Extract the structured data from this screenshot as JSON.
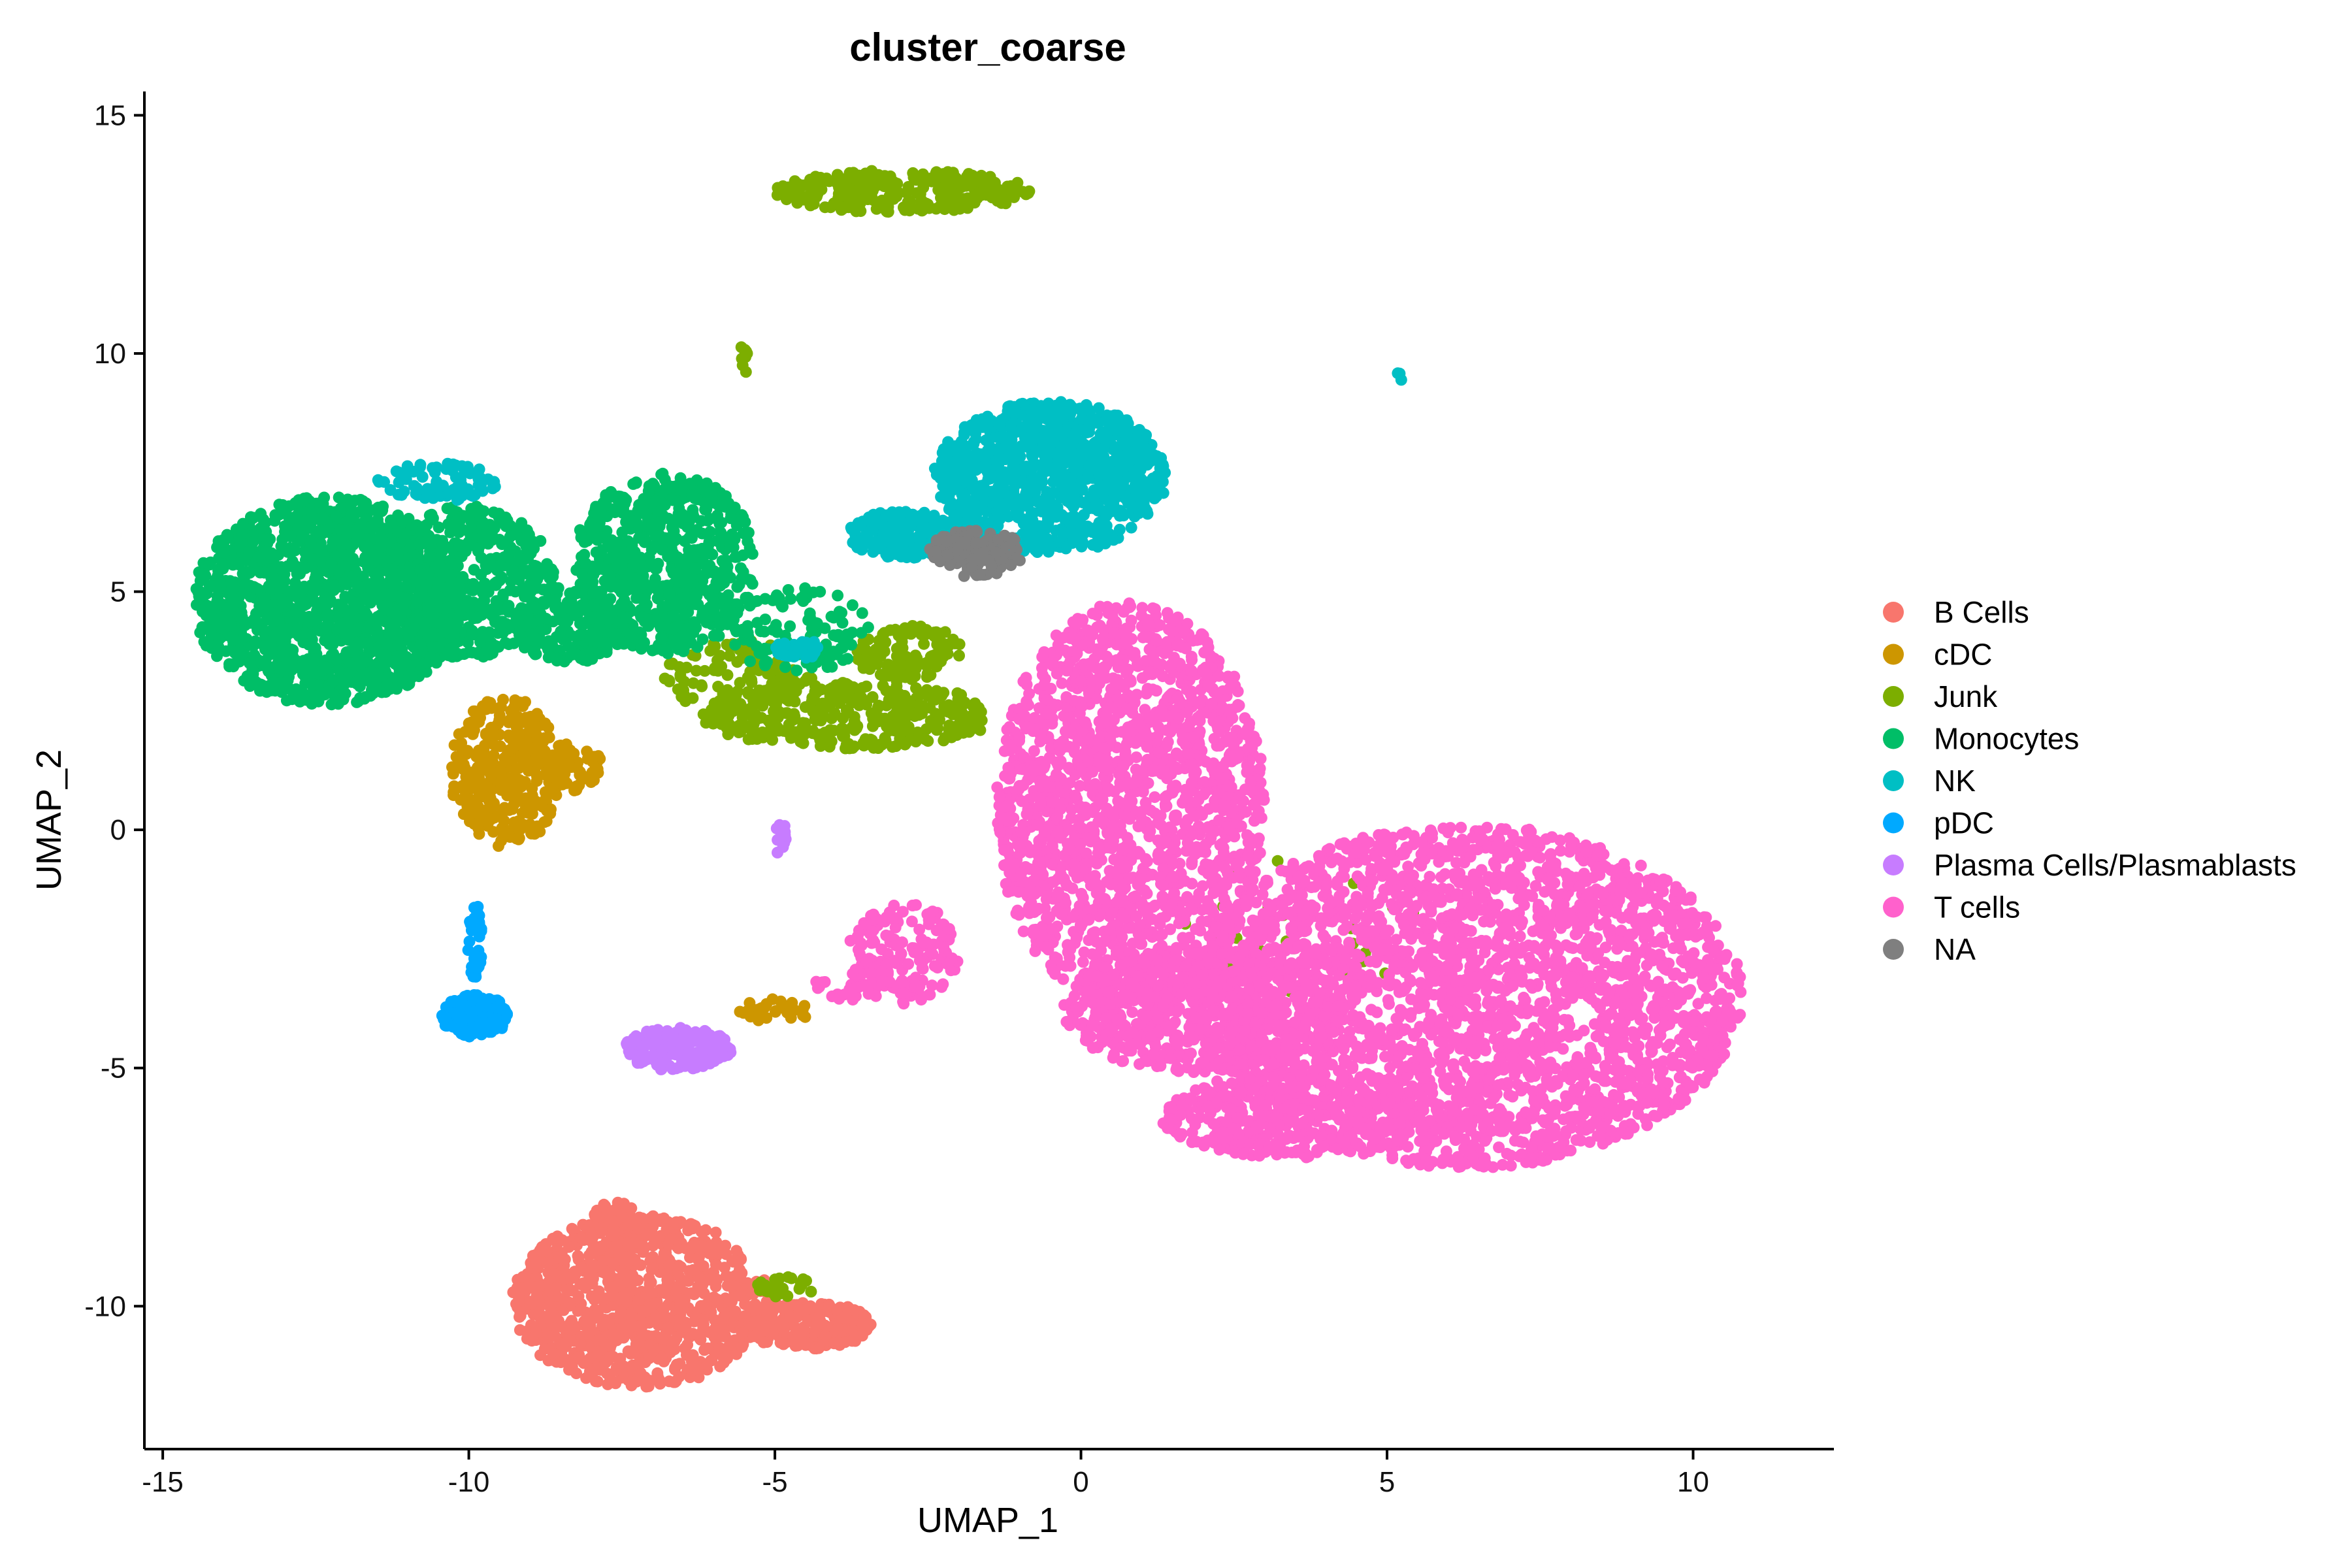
{
  "chart_data": {
    "type": "scatter",
    "title": "cluster_coarse",
    "xlabel": "UMAP_1",
    "ylabel": "UMAP_2",
    "xlim": [
      -15.3,
      12.3
    ],
    "ylim": [
      -13.0,
      15.5
    ],
    "x_ticks": [
      -15,
      -10,
      -5,
      0,
      5,
      10
    ],
    "y_ticks": [
      -10,
      -5,
      0,
      5,
      10,
      15
    ],
    "grid": false,
    "legend_position": "right",
    "series": [
      {
        "name": "B Cells",
        "color": "#F8766D",
        "blobs": [
          {
            "cx": -7.2,
            "cy": -9.9,
            "rx": 2.1,
            "ry": 1.8,
            "n": 900
          },
          {
            "cx": -4.5,
            "cy": -10.4,
            "rx": 1.1,
            "ry": 0.5,
            "n": 220
          },
          {
            "cx": -7.6,
            "cy": -8.5,
            "rx": 0.5,
            "ry": 0.7,
            "n": 90
          }
        ]
      },
      {
        "name": "cDC",
        "color": "#CD9600",
        "blobs": [
          {
            "cx": -9.4,
            "cy": 1.2,
            "rx": 0.9,
            "ry": 1.6,
            "n": 340
          },
          {
            "cx": -8.4,
            "cy": 1.3,
            "rx": 0.6,
            "ry": 0.5,
            "n": 80
          },
          {
            "cx": -5.0,
            "cy": -3.8,
            "rx": 0.6,
            "ry": 0.25,
            "n": 30
          }
        ]
      },
      {
        "name": "Junk",
        "color": "#7CAE00",
        "blobs": [
          {
            "cx": -2.9,
            "cy": 13.4,
            "rx": 2.1,
            "ry": 0.45,
            "n": 260
          },
          {
            "cx": -3.8,
            "cy": 2.4,
            "rx": 2.4,
            "ry": 0.7,
            "n": 380
          },
          {
            "cx": -2.8,
            "cy": 3.7,
            "rx": 0.9,
            "ry": 0.6,
            "n": 120
          },
          {
            "cx": -5.6,
            "cy": 3.2,
            "rx": 1.2,
            "ry": 0.8,
            "n": 120
          },
          {
            "cx": -5.5,
            "cy": 9.9,
            "rx": 0.08,
            "ry": 0.35,
            "n": 10
          },
          {
            "cx": -4.8,
            "cy": -9.6,
            "rx": 0.5,
            "ry": 0.25,
            "n": 25
          },
          {
            "cx": 3.5,
            "cy": -2.0,
            "rx": 2.0,
            "ry": 1.5,
            "n": 30
          }
        ]
      },
      {
        "name": "Monocytes",
        "color": "#00BE67",
        "blobs": [
          {
            "cx": -12.3,
            "cy": 4.8,
            "rx": 2.2,
            "ry": 2.2,
            "n": 1500
          },
          {
            "cx": -10.0,
            "cy": 5.2,
            "rx": 1.4,
            "ry": 1.6,
            "n": 500
          },
          {
            "cx": -6.8,
            "cy": 5.6,
            "rx": 1.5,
            "ry": 1.9,
            "n": 650
          },
          {
            "cx": -8.3,
            "cy": 4.3,
            "rx": 1.0,
            "ry": 0.8,
            "n": 200
          },
          {
            "cx": -4.6,
            "cy": 4.2,
            "rx": 1.2,
            "ry": 0.9,
            "n": 100
          }
        ]
      },
      {
        "name": "NK",
        "color": "#00BFC4",
        "blobs": [
          {
            "cx": -0.5,
            "cy": 7.4,
            "rx": 1.9,
            "ry": 1.6,
            "n": 950
          },
          {
            "cx": -2.9,
            "cy": 6.2,
            "rx": 0.9,
            "ry": 0.5,
            "n": 220
          },
          {
            "cx": -10.5,
            "cy": 7.3,
            "rx": 1.0,
            "ry": 0.4,
            "n": 80
          },
          {
            "cx": -4.6,
            "cy": 3.8,
            "rx": 0.4,
            "ry": 0.2,
            "n": 40
          },
          {
            "cx": 5.2,
            "cy": 9.5,
            "rx": 0.05,
            "ry": 0.1,
            "n": 3
          }
        ]
      },
      {
        "name": "pDC",
        "color": "#00A9FF",
        "blobs": [
          {
            "cx": -9.9,
            "cy": -3.9,
            "rx": 0.55,
            "ry": 0.45,
            "n": 170
          },
          {
            "cx": -9.9,
            "cy": -2.3,
            "rx": 0.12,
            "ry": 0.8,
            "n": 40
          }
        ]
      },
      {
        "name": "Plasma Cells/Plasmablasts",
        "color": "#C77CFF",
        "blobs": [
          {
            "cx": -6.6,
            "cy": -4.6,
            "rx": 0.9,
            "ry": 0.45,
            "n": 190
          },
          {
            "cx": -4.9,
            "cy": -0.2,
            "rx": 0.1,
            "ry": 0.35,
            "n": 12
          }
        ]
      },
      {
        "name": "T cells",
        "color": "#FF61CC",
        "blobs": [
          {
            "cx": 0.8,
            "cy": 0.5,
            "rx": 2.2,
            "ry": 4.3,
            "n": 1800
          },
          {
            "cx": 6.3,
            "cy": -3.5,
            "rx": 4.5,
            "ry": 3.6,
            "n": 2800
          },
          {
            "cx": 2.0,
            "cy": -3.8,
            "rx": 2.3,
            "ry": 1.3,
            "n": 600
          },
          {
            "cx": 3.5,
            "cy": -6.0,
            "rx": 2.2,
            "ry": 0.9,
            "n": 400
          },
          {
            "cx": -2.9,
            "cy": -2.6,
            "rx": 0.9,
            "ry": 1.1,
            "n": 140
          },
          {
            "cx": -3.5,
            "cy": -3.3,
            "rx": 0.9,
            "ry": 0.3,
            "n": 40
          }
        ]
      },
      {
        "name": "NA",
        "color": "#7F7F7F",
        "blobs": [
          {
            "cx": -1.7,
            "cy": 5.8,
            "rx": 0.8,
            "ry": 0.5,
            "n": 120
          }
        ]
      }
    ]
  }
}
